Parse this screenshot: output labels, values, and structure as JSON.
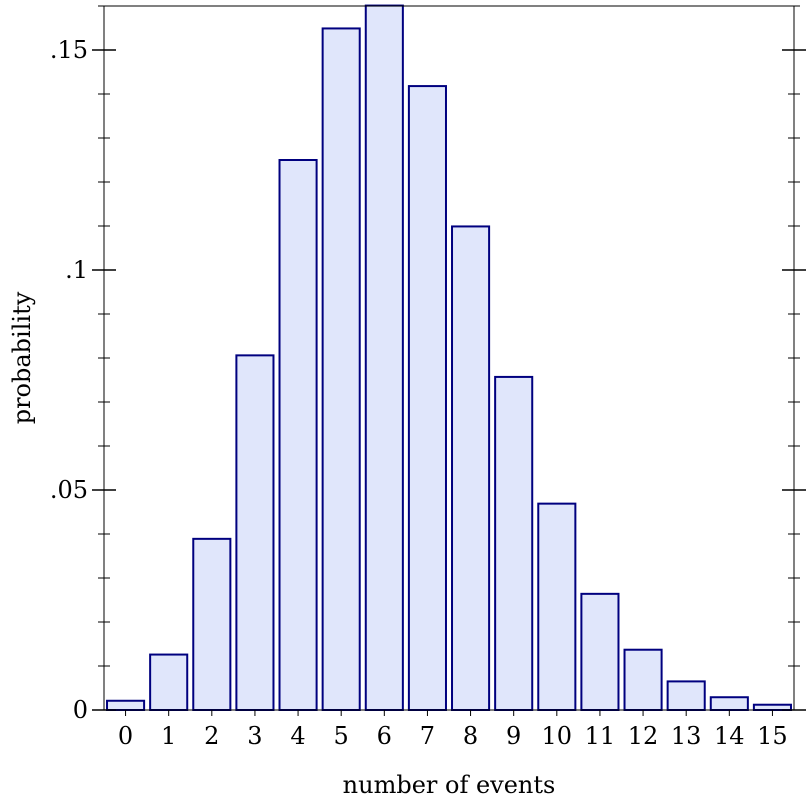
{
  "chart_data": {
    "type": "bar",
    "title": "",
    "xlabel": "number of events",
    "ylabel": "probability",
    "categories": [
      "0",
      "1",
      "2",
      "3",
      "4",
      "5",
      "6",
      "7",
      "8",
      "9",
      "10",
      "11",
      "12",
      "13",
      "14",
      "15"
    ],
    "values": [
      0.0021,
      0.0126,
      0.0389,
      0.0806,
      0.125,
      0.1549,
      0.1601,
      0.1418,
      0.1099,
      0.0757,
      0.0469,
      0.0264,
      0.0137,
      0.0065,
      0.0029,
      0.0012
    ],
    "ylim": [
      0,
      0.16
    ],
    "y_ticks": [
      {
        "value": 0,
        "label": "0"
      },
      {
        "value": 0.05,
        "label": ".05"
      },
      {
        "value": 0.1,
        "label": ".1"
      },
      {
        "value": 0.15,
        "label": ".15"
      }
    ],
    "y_minor_step": 0.01,
    "grid": false,
    "colors": {
      "bar_fill": "#e0e6fb",
      "bar_stroke": "#00007f",
      "axis": "#000000"
    }
  }
}
